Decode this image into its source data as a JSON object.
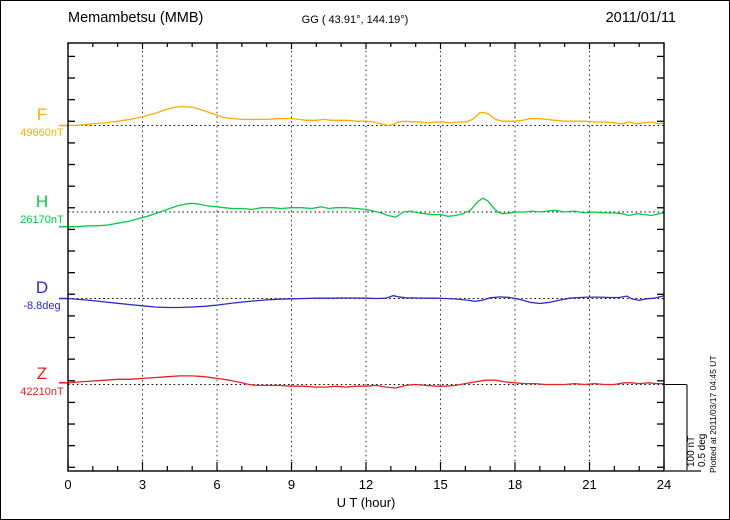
{
  "header": {
    "station": "Memambetsu (MMB)",
    "coords": "GG ( 43.91°, 144.19°)",
    "date": "2011/01/11"
  },
  "scale_bar": {
    "labels": [
      "100 nT",
      "0.5 deg"
    ]
  },
  "plotted_note": "Plotted at 2011/03/17 04:45 UT",
  "chart_data": {
    "type": "line",
    "title": "Memambetsu (MMB) magnetogram 2011/01/11",
    "xlabel": "U T (hour)",
    "x_range": [
      0,
      24
    ],
    "x_ticks": [
      0,
      3,
      6,
      9,
      12,
      15,
      18,
      21,
      24
    ],
    "grid_hours": [
      3,
      6,
      9,
      12,
      15,
      18,
      21
    ],
    "division": {
      "nT": 100,
      "deg": 0.5
    },
    "offsets_note": "point values are offsets from each component baseline, in the series unit",
    "series": [
      {
        "name": "F",
        "baseline_label": "49660nT",
        "unit": "nT",
        "color": "#FFAD00",
        "points": [
          [
            0,
            0
          ],
          [
            0.5,
            0.5
          ],
          [
            1,
            2
          ],
          [
            1.5,
            3
          ],
          [
            2,
            5
          ],
          [
            2.5,
            7
          ],
          [
            3,
            10
          ],
          [
            3.5,
            14
          ],
          [
            4,
            19
          ],
          [
            4.3,
            21
          ],
          [
            4.6,
            22
          ],
          [
            5,
            21
          ],
          [
            5.3,
            19
          ],
          [
            5.6,
            16
          ],
          [
            6,
            12
          ],
          [
            6.3,
            9
          ],
          [
            6.6,
            8
          ],
          [
            7,
            7
          ],
          [
            7.5,
            7
          ],
          [
            8,
            7
          ],
          [
            8.5,
            8
          ],
          [
            9,
            8
          ],
          [
            9.3,
            7
          ],
          [
            9.6,
            6
          ],
          [
            10,
            6
          ],
          [
            10.3,
            7
          ],
          [
            10.6,
            6
          ],
          [
            11,
            6
          ],
          [
            11.3,
            6
          ],
          [
            11.6,
            5
          ],
          [
            12,
            5
          ],
          [
            12.3,
            4
          ],
          [
            12.6,
            2
          ],
          [
            12.9,
            0
          ],
          [
            13.1,
            1
          ],
          [
            13.3,
            4
          ],
          [
            13.6,
            5
          ],
          [
            13.9,
            4
          ],
          [
            14.2,
            4
          ],
          [
            14.5,
            3
          ],
          [
            14.8,
            4
          ],
          [
            15.1,
            4
          ],
          [
            15.4,
            3
          ],
          [
            15.7,
            4
          ],
          [
            16,
            4
          ],
          [
            16.3,
            7
          ],
          [
            16.6,
            15
          ],
          [
            16.8,
            15
          ],
          [
            17,
            12
          ],
          [
            17.2,
            7
          ],
          [
            17.5,
            5
          ],
          [
            18,
            5
          ],
          [
            18.3,
            6
          ],
          [
            18.6,
            8
          ],
          [
            19,
            8
          ],
          [
            19.3,
            7
          ],
          [
            19.6,
            6
          ],
          [
            20,
            5
          ],
          [
            20.4,
            5
          ],
          [
            20.8,
            5
          ],
          [
            21.2,
            4
          ],
          [
            21.6,
            4
          ],
          [
            22,
            3
          ],
          [
            22.3,
            2
          ],
          [
            22.6,
            4
          ],
          [
            22.9,
            2
          ],
          [
            23.2,
            3
          ],
          [
            23.5,
            4
          ],
          [
            23.8,
            2
          ],
          [
            24,
            3
          ]
        ]
      },
      {
        "name": "H",
        "baseline_label": "26170nT",
        "unit": "nT",
        "color": "#00CC44",
        "points": [
          [
            0,
            -17
          ],
          [
            0.4,
            -17
          ],
          [
            0.8,
            -16
          ],
          [
            1.2,
            -16
          ],
          [
            1.6,
            -15
          ],
          [
            2,
            -13
          ],
          [
            2.4,
            -11
          ],
          [
            2.8,
            -8
          ],
          [
            3.2,
            -5
          ],
          [
            3.5,
            -2
          ],
          [
            3.8,
            1
          ],
          [
            4.1,
            4
          ],
          [
            4.4,
            7
          ],
          [
            4.7,
            9
          ],
          [
            5,
            10
          ],
          [
            5.3,
            9
          ],
          [
            5.6,
            7
          ],
          [
            6,
            6
          ],
          [
            6.3,
            5
          ],
          [
            6.6,
            4
          ],
          [
            7,
            4
          ],
          [
            7.4,
            3
          ],
          [
            7.8,
            5
          ],
          [
            8.2,
            5
          ],
          [
            8.6,
            4
          ],
          [
            9,
            5
          ],
          [
            9.4,
            5
          ],
          [
            9.8,
            4
          ],
          [
            10.2,
            6
          ],
          [
            10.5,
            4
          ],
          [
            10.8,
            5
          ],
          [
            11.2,
            5
          ],
          [
            11.6,
            4
          ],
          [
            12,
            3
          ],
          [
            12.3,
            1
          ],
          [
            12.6,
            -1
          ],
          [
            12.9,
            -4
          ],
          [
            13.2,
            -6
          ],
          [
            13.5,
            0
          ],
          [
            13.8,
            1
          ],
          [
            14.1,
            -1
          ],
          [
            14.4,
            -2
          ],
          [
            14.7,
            -3
          ],
          [
            15,
            -3
          ],
          [
            15.3,
            -5
          ],
          [
            15.6,
            -4
          ],
          [
            15.9,
            -2
          ],
          [
            16.2,
            2
          ],
          [
            16.5,
            12
          ],
          [
            16.7,
            16
          ],
          [
            16.9,
            13
          ],
          [
            17.1,
            6
          ],
          [
            17.3,
            0
          ],
          [
            17.5,
            -2
          ],
          [
            17.8,
            -1
          ],
          [
            18.1,
            0
          ],
          [
            18.4,
            0
          ],
          [
            18.7,
            1
          ],
          [
            19,
            0
          ],
          [
            19.3,
            1
          ],
          [
            19.6,
            2
          ],
          [
            20,
            0
          ],
          [
            20.4,
            1
          ],
          [
            20.8,
            -1
          ],
          [
            21.2,
            0
          ],
          [
            21.6,
            -1
          ],
          [
            22,
            -1
          ],
          [
            22.3,
            -2
          ],
          [
            22.6,
            -4
          ],
          [
            22.9,
            -2
          ],
          [
            23.2,
            -3
          ],
          [
            23.5,
            -4
          ],
          [
            23.8,
            -2
          ],
          [
            24,
            -1
          ]
        ]
      },
      {
        "name": "D",
        "baseline_label": "-8.8deg",
        "unit": "deg",
        "color": "#2A2AC8",
        "points": [
          [
            0,
            0
          ],
          [
            0.5,
            -0.006
          ],
          [
            1,
            -0.012
          ],
          [
            1.5,
            -0.02
          ],
          [
            2,
            -0.028
          ],
          [
            2.5,
            -0.035
          ],
          [
            3,
            -0.042
          ],
          [
            3.5,
            -0.049
          ],
          [
            4,
            -0.052
          ],
          [
            4.5,
            -0.052
          ],
          [
            5,
            -0.049
          ],
          [
            5.5,
            -0.045
          ],
          [
            6,
            -0.038
          ],
          [
            6.5,
            -0.029
          ],
          [
            7,
            -0.021
          ],
          [
            7.5,
            -0.014
          ],
          [
            8,
            -0.008
          ],
          [
            8.5,
            -0.004
          ],
          [
            9,
            -0.002
          ],
          [
            9.5,
            0
          ],
          [
            10,
            0.002
          ],
          [
            10.5,
            0.002
          ],
          [
            11,
            0.003
          ],
          [
            11.5,
            0.003
          ],
          [
            12,
            0.002
          ],
          [
            12.4,
            0
          ],
          [
            12.8,
            0.002
          ],
          [
            13.1,
            0.017
          ],
          [
            13.3,
            0.01
          ],
          [
            13.6,
            0.004
          ],
          [
            14,
            0.003
          ],
          [
            14.4,
            0.002
          ],
          [
            14.8,
            0.002
          ],
          [
            15.2,
            0
          ],
          [
            15.6,
            -0.003
          ],
          [
            16,
            -0.008
          ],
          [
            16.4,
            -0.017
          ],
          [
            16.7,
            -0.009
          ],
          [
            17,
            0.004
          ],
          [
            17.4,
            0.009
          ],
          [
            17.8,
            0.006
          ],
          [
            18.2,
            -0.006
          ],
          [
            18.6,
            -0.022
          ],
          [
            19,
            -0.029
          ],
          [
            19.4,
            -0.022
          ],
          [
            19.8,
            -0.009
          ],
          [
            20.2,
            0.002
          ],
          [
            20.6,
            0.006
          ],
          [
            21,
            0.008
          ],
          [
            21.4,
            0.008
          ],
          [
            21.8,
            0.006
          ],
          [
            22.2,
            0.006
          ],
          [
            22.5,
            0.014
          ],
          [
            22.7,
            -0.002
          ],
          [
            23,
            -0.011
          ],
          [
            23.3,
            -0.002
          ],
          [
            23.6,
            0.002
          ],
          [
            24,
            0.016
          ]
        ]
      },
      {
        "name": "Z",
        "baseline_label": "42210nT",
        "unit": "nT",
        "color": "#E62222",
        "points": [
          [
            0,
            2
          ],
          [
            0.5,
            3
          ],
          [
            1,
            4
          ],
          [
            1.5,
            5
          ],
          [
            2,
            6
          ],
          [
            2.5,
            6
          ],
          [
            3,
            7
          ],
          [
            3.5,
            8
          ],
          [
            4,
            9
          ],
          [
            4.5,
            10
          ],
          [
            5,
            10
          ],
          [
            5.5,
            9
          ],
          [
            6,
            7
          ],
          [
            6.5,
            5
          ],
          [
            7,
            2
          ],
          [
            7.3,
            0
          ],
          [
            7.6,
            -1
          ],
          [
            8,
            -1
          ],
          [
            8.5,
            -1
          ],
          [
            9,
            -2
          ],
          [
            9.5,
            -2
          ],
          [
            10,
            -3
          ],
          [
            10.4,
            -3
          ],
          [
            10.8,
            -2
          ],
          [
            11.2,
            -3
          ],
          [
            11.6,
            -2
          ],
          [
            12,
            -2
          ],
          [
            12.4,
            -1
          ],
          [
            12.8,
            -3
          ],
          [
            13.2,
            -4
          ],
          [
            13.6,
            -1
          ],
          [
            14,
            0
          ],
          [
            14.4,
            -1
          ],
          [
            14.8,
            -2
          ],
          [
            15.2,
            -2
          ],
          [
            15.6,
            -1
          ],
          [
            16,
            1
          ],
          [
            16.4,
            3
          ],
          [
            16.8,
            5
          ],
          [
            17.2,
            5
          ],
          [
            17.6,
            3
          ],
          [
            18,
            2
          ],
          [
            18.4,
            1
          ],
          [
            18.8,
            1
          ],
          [
            19.2,
            0
          ],
          [
            19.6,
            0
          ],
          [
            20,
            0
          ],
          [
            20.4,
            1
          ],
          [
            20.8,
            0
          ],
          [
            21.2,
            1
          ],
          [
            21.6,
            0
          ],
          [
            22,
            0
          ],
          [
            22.4,
            2
          ],
          [
            22.7,
            2
          ],
          [
            23,
            1
          ],
          [
            23.4,
            2
          ],
          [
            23.7,
            1
          ],
          [
            24,
            1
          ]
        ]
      }
    ]
  }
}
